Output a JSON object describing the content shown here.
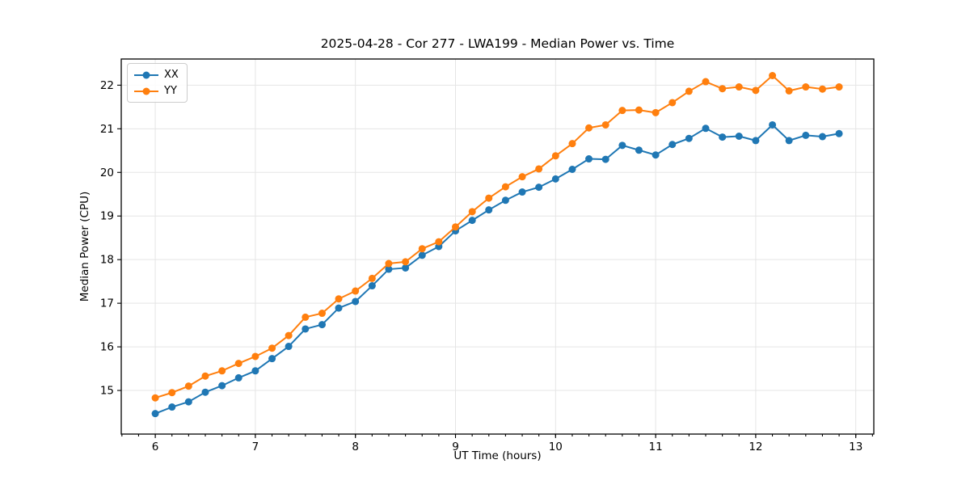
{
  "colors": {
    "background": "#ffffff",
    "grid": "#e5e5e5",
    "spine": "#000000",
    "text": "#000000",
    "legend_border": "#cccccc",
    "series_xx": "#1f77b4",
    "series_yy": "#ff7f0e"
  },
  "chart_data": {
    "type": "line",
    "title": "2025-04-28 - Cor 277 - LWA199 - Median Power vs. Time",
    "xlabel": "UT Time (hours)",
    "ylabel": "Median Power (CPU)",
    "grid": true,
    "legend_position": "upper-left",
    "xlim": [
      5.66,
      13.18
    ],
    "ylim": [
      14.0,
      22.6
    ],
    "x_ticks": [
      6,
      7,
      8,
      9,
      10,
      11,
      12,
      13
    ],
    "y_ticks": [
      15,
      16,
      17,
      18,
      19,
      20,
      21,
      22
    ],
    "x_minor_tick_step": 0.166667,
    "x": [
      6,
      6.167,
      6.333,
      6.5,
      6.667,
      6.833,
      7,
      7.167,
      7.333,
      7.5,
      7.667,
      7.833,
      8,
      8.167,
      8.333,
      8.5,
      8.667,
      8.833,
      9,
      9.167,
      9.333,
      9.5,
      9.667,
      9.833,
      10,
      10.167,
      10.333,
      10.5,
      10.667,
      10.833,
      11,
      11.167,
      11.333,
      11.5,
      11.667,
      11.833,
      12,
      12.167,
      12.333,
      12.5,
      12.667,
      12.833
    ],
    "series": [
      {
        "name": "XX",
        "color": "#1f77b4",
        "values": [
          14.47,
          14.62,
          14.74,
          14.96,
          15.11,
          15.29,
          15.45,
          15.73,
          16.01,
          16.41,
          16.51,
          16.89,
          17.04,
          17.4,
          17.78,
          17.81,
          18.1,
          18.3,
          18.66,
          18.9,
          19.14,
          19.36,
          19.55,
          19.66,
          19.85,
          20.07,
          20.31,
          20.3,
          20.62,
          20.51,
          20.4,
          20.64,
          20.78,
          21.01,
          20.81,
          20.83,
          20.73,
          21.09,
          20.73,
          20.85,
          20.82,
          20.89
        ]
      },
      {
        "name": "YY",
        "color": "#ff7f0e",
        "values": [
          14.83,
          14.95,
          15.1,
          15.33,
          15.45,
          15.62,
          15.78,
          15.97,
          16.26,
          16.68,
          16.77,
          17.1,
          17.28,
          17.57,
          17.91,
          17.95,
          18.25,
          18.41,
          18.75,
          19.1,
          19.41,
          19.67,
          19.9,
          20.08,
          20.38,
          20.66,
          21.02,
          21.09,
          21.42,
          21.43,
          21.37,
          21.6,
          21.86,
          22.08,
          21.92,
          21.96,
          21.88,
          22.22,
          21.87,
          21.96,
          21.91,
          21.96
        ]
      }
    ]
  }
}
